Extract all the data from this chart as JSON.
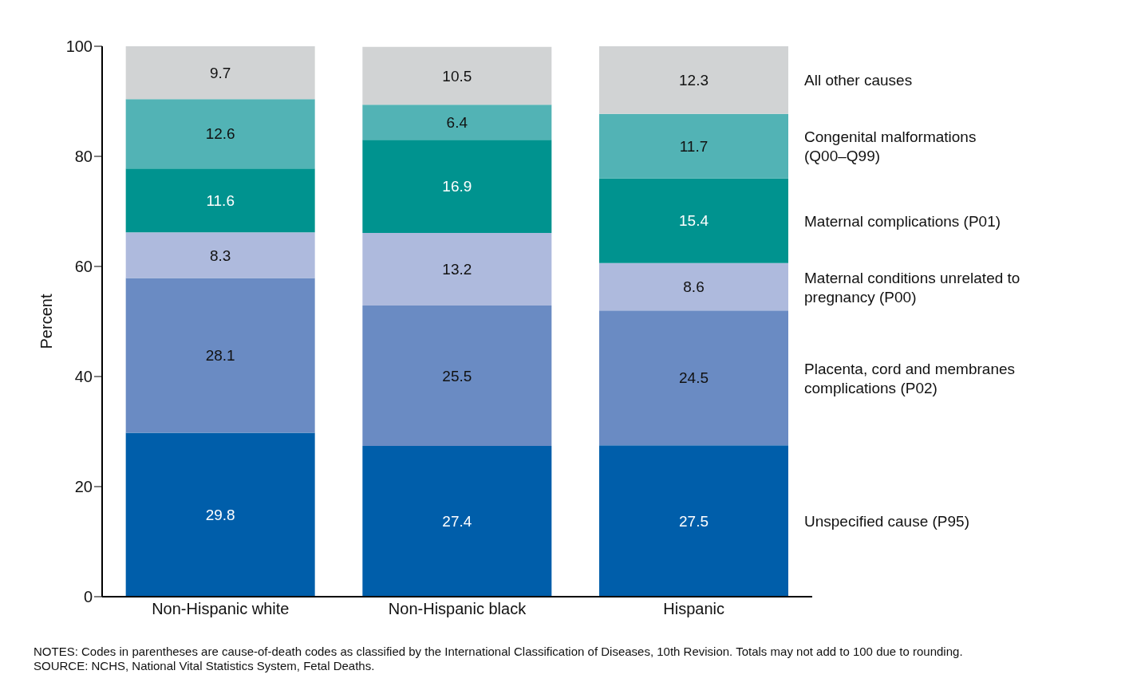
{
  "chart_data": {
    "type": "bar",
    "stacked": true,
    "ylabel": "Percent",
    "categories": [
      "Non-Hispanic white",
      "Non-Hispanic black",
      "Hispanic"
    ],
    "series": [
      {
        "name": "Unspecified cause (P95)",
        "color": "#005eaa",
        "values": [
          29.8,
          27.4,
          27.5
        ]
      },
      {
        "name": "Placenta, cord and membranes complications (P02)",
        "color": "#6a8bc3",
        "values": [
          28.1,
          25.5,
          24.5
        ]
      },
      {
        "name": "Maternal conditions unrelated to pregnancy (P00)",
        "color": "#aebadd",
        "values": [
          8.3,
          13.2,
          8.6
        ]
      },
      {
        "name": "Maternal complications (P01)",
        "color": "#00938f",
        "values": [
          11.6,
          16.9,
          15.4
        ]
      },
      {
        "name": "Congenital malformations (Q00–Q99)",
        "color": "#52b3b5",
        "values": [
          12.6,
          6.4,
          11.7
        ]
      },
      {
        "name": "All other causes",
        "color": "#d1d3d4",
        "values": [
          9.7,
          10.5,
          12.3
        ]
      }
    ],
    "ylim": [
      0,
      100
    ],
    "yticks": [
      0,
      20,
      40,
      60,
      80,
      100
    ],
    "grid": false,
    "legend": false,
    "data_labels": true,
    "annotations": [
      "NOTES: Codes in parentheses are cause-of-death codes as classified by the International Classification of Diseases, 10th Revision. Totals may not add to 100 due to rounding.",
      "SOURCE: NCHS, National Vital Statistics System, Fetal Deaths."
    ]
  }
}
